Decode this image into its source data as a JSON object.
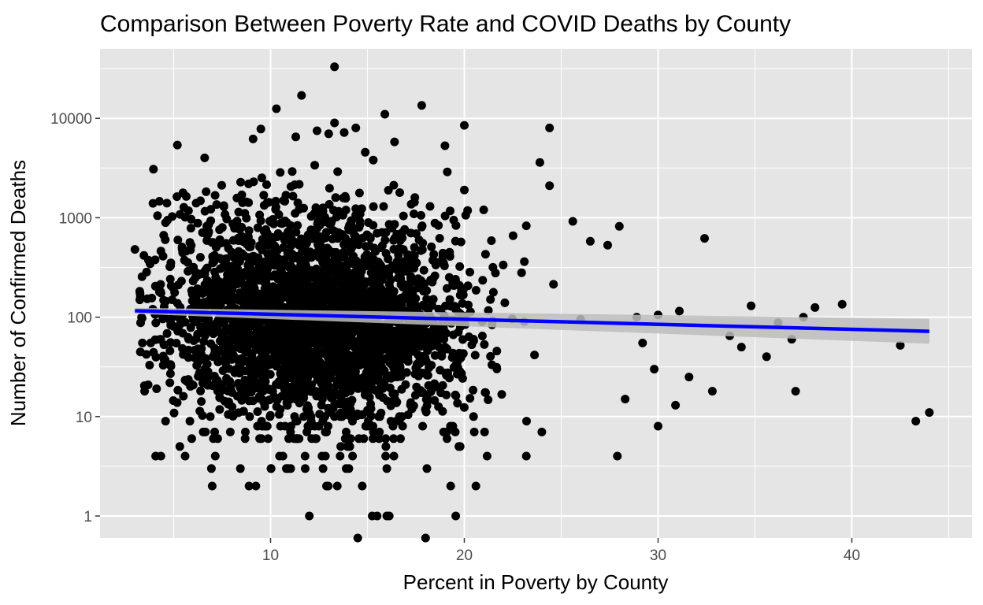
{
  "chart_data": {
    "type": "scatter",
    "title": "Comparison Between Poverty Rate and COVID Deaths by County",
    "xlabel": "Percent in Poverty by County",
    "ylabel": "Number of Confirmed Deaths",
    "xlim": [
      1.2,
      46.2
    ],
    "ylim": [
      0.6,
      50000
    ],
    "y_scale": "log10",
    "x_ticks": [
      10,
      20,
      30,
      40
    ],
    "x_tick_labels": [
      "10",
      "20",
      "30",
      "40"
    ],
    "y_ticks": [
      1,
      10,
      100,
      1000,
      10000
    ],
    "y_tick_labels": [
      "1",
      "10",
      "100",
      "1000",
      "10000"
    ],
    "grid": true,
    "background": "#e5e5e5",
    "grid_color": "#ffffff",
    "point_color": "#000000",
    "trend_color": "#0000ff",
    "band_color": "#bdbdbd",
    "trend_line": {
      "x": [
        3.0,
        44.0
      ],
      "y": [
        116,
        72
      ]
    },
    "confidence_band": {
      "x": [
        3.0,
        44.0
      ],
      "lower": [
        108,
        54
      ],
      "upper": [
        124,
        96
      ]
    },
    "points": {
      "x": [
        13.3,
        11.6,
        10.3,
        17.8,
        15.9,
        20.0,
        24.4,
        13.3,
        14.4,
        13.0,
        11.3,
        12.4,
        13.8,
        16.4,
        19.0,
        9.1,
        9.5,
        6.6,
        15.3,
        23.9,
        24.4,
        20.0,
        26.5,
        27.4,
        32.4,
        28.0,
        25.6,
        21.0,
        39.5,
        38.1,
        34.8,
        31.1,
        30.0,
        28.9,
        37.5,
        36.2,
        42.5,
        44.0,
        43.3,
        37.1,
        32.8,
        30.9,
        30.0,
        27.9,
        23.2,
        24.0,
        3.0,
        3.5,
        4.5,
        5.5,
        12.0,
        14.5,
        15.5,
        16.0,
        18.0,
        28.3,
        29.8,
        35.6,
        34.3,
        33.7,
        36.9,
        31.6,
        29.2,
        26.0
      ],
      "y": [
        33000,
        17000,
        12500,
        13500,
        11000,
        8500,
        8000,
        9000,
        8000,
        7000,
        6500,
        7500,
        7200,
        5800,
        5300,
        6200,
        7800,
        4000,
        3800,
        3600,
        2100,
        1900,
        580,
        530,
        620,
        820,
        920,
        1200,
        135,
        125,
        130,
        115,
        105,
        100,
        100,
        88,
        52,
        11,
        9,
        18,
        18,
        13,
        8,
        4,
        4,
        7,
        480,
        18,
        38,
        16,
        1,
        0.6,
        1,
        1,
        0.6,
        15,
        30,
        40,
        50,
        65,
        60,
        25,
        55,
        95
      ]
    }
  }
}
